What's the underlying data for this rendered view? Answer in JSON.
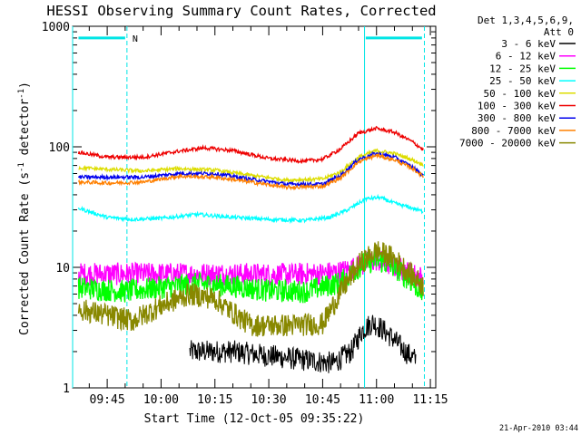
{
  "chart_data": {
    "type": "line",
    "title": "HESSI Observing Summary Count Rates, Corrected",
    "xlabel": "Start Time (12-Oct-05 09:35:22)",
    "ylabel": "Corrected Count Rate (s⁻¹ detector⁻¹)",
    "ylabel_parts": {
      "prefix": "Corrected Count Rate (s",
      "sup1": "-1",
      "middle": " detector",
      "sup2": "-1",
      "suffix": ")"
    },
    "y_scale": "log",
    "ylim": [
      1,
      1000
    ],
    "xlim": [
      "09:35:22",
      "11:16:30"
    ],
    "x_tick_labels": [
      "09:45",
      "10:00",
      "10:15",
      "10:30",
      "10:45",
      "11:00",
      "11:15"
    ],
    "y_tick_labels": [
      "1",
      "10",
      "100",
      "1000"
    ],
    "legend_header": [
      "Det 1,3,4,5,6,9,",
      "Att 0"
    ],
    "legend_position": "right",
    "timestamp": "21-Apr-2010 03:44",
    "annotation": "N",
    "markers": {
      "color": "#00e5e5",
      "solid_times": [
        "09:35:22",
        "10:56:40"
      ],
      "dashed_times": [
        "09:50:30",
        "11:13:20"
      ],
      "bars": [
        {
          "from": "09:37:00",
          "to": "09:50:00",
          "value": 800
        },
        {
          "from": "10:57:00",
          "to": "11:12:40",
          "value": 800
        }
      ]
    },
    "series": [
      {
        "name": "3 - 6 keV",
        "color": "#000000",
        "x": [
          "10:08",
          "10:12",
          "10:16",
          "10:20",
          "10:48",
          "10:53",
          "10:56",
          "10:59",
          "11:02",
          "11:05",
          "11:08",
          "11:11"
        ],
        "y": [
          2,
          2,
          2,
          2,
          1.6,
          2,
          3,
          3.5,
          3,
          2.5,
          2,
          1.7
        ]
      },
      {
        "name": "6 - 12 keV",
        "color": "#ff00ff",
        "x": [
          "09:37",
          "09:50",
          "10:05",
          "10:20",
          "10:35",
          "10:45",
          "10:50",
          "10:55",
          "11:00",
          "11:05",
          "11:10",
          "11:13"
        ],
        "y": [
          8.8,
          8.8,
          8.8,
          8.8,
          8.7,
          8.9,
          9.2,
          10.2,
          11.5,
          10.2,
          8.8,
          8.2
        ]
      },
      {
        "name": "12 - 25 keV",
        "color": "#00ff00",
        "x": [
          "09:37",
          "09:50",
          "10:00",
          "10:10",
          "10:20",
          "10:30",
          "10:40",
          "10:50",
          "10:56",
          "11:00",
          "11:05",
          "11:10",
          "11:13"
        ],
        "y": [
          6.8,
          6.3,
          6.8,
          7.3,
          7.0,
          6.4,
          6.3,
          7.5,
          10.5,
          11.5,
          10.0,
          7.5,
          6.0
        ]
      },
      {
        "name": "25 - 50 keV",
        "color": "#00ffff",
        "x": [
          "09:37",
          "09:45",
          "09:52",
          "10:00",
          "10:10",
          "10:20",
          "10:30",
          "10:40",
          "10:47",
          "10:52",
          "10:57",
          "11:01",
          "11:05",
          "11:10",
          "11:13"
        ],
        "y": [
          31,
          26,
          25,
          25.5,
          27.5,
          26,
          25,
          24.5,
          26,
          30,
          37,
          38,
          34,
          31,
          29
        ]
      },
      {
        "name": "50 - 100 keV",
        "color": "#dddd00",
        "x": [
          "09:37",
          "09:45",
          "09:55",
          "10:05",
          "10:15",
          "10:25",
          "10:35",
          "10:45",
          "10:50",
          "10:55",
          "11:00",
          "11:05",
          "11:10",
          "11:13"
        ],
        "y": [
          67,
          65,
          63,
          66,
          64,
          58,
          53,
          54,
          62,
          82,
          93,
          88,
          78,
          71
        ]
      },
      {
        "name": "100 - 300 keV",
        "color": "#ee0000",
        "x": [
          "09:37",
          "09:45",
          "09:55",
          "10:05",
          "10:12",
          "10:20",
          "10:30",
          "10:40",
          "10:45",
          "10:50",
          "10:55",
          "11:00",
          "11:05",
          "11:10",
          "11:13"
        ],
        "y": [
          90,
          82,
          82,
          92,
          98,
          93,
          80,
          76,
          79,
          96,
          130,
          142,
          132,
          110,
          95
        ]
      },
      {
        "name": "300 - 800 keV",
        "color": "#0000ee",
        "x": [
          "09:37",
          "09:45",
          "09:55",
          "10:05",
          "10:15",
          "10:25",
          "10:35",
          "10:45",
          "10:50",
          "10:55",
          "11:00",
          "11:05",
          "11:10",
          "11:13"
        ],
        "y": [
          56,
          56,
          56,
          60,
          60,
          54,
          49,
          49,
          58,
          79,
          88,
          82,
          68,
          58
        ]
      },
      {
        "name": "800 - 7000 keV",
        "color": "#ff8000",
        "x": [
          "09:37",
          "09:45",
          "09:55",
          "10:05",
          "10:15",
          "10:25",
          "10:35",
          "10:45",
          "10:50",
          "10:55",
          "11:00",
          "11:05",
          "11:10",
          "11:13"
        ],
        "y": [
          51,
          50,
          51,
          57,
          56,
          51,
          46,
          47,
          55,
          75,
          85,
          78,
          66,
          57
        ]
      },
      {
        "name": "7000 - 20000 keV",
        "color": "#888800",
        "x": [
          "09:37",
          "09:45",
          "09:52",
          "10:00",
          "10:08",
          "10:15",
          "10:20",
          "10:25",
          "10:35",
          "10:45",
          "10:50",
          "10:55",
          "11:00",
          "11:05",
          "11:10",
          "11:13"
        ],
        "y": [
          4.5,
          4.0,
          3.6,
          4.8,
          6.0,
          5.5,
          4.2,
          3.3,
          3.3,
          3.4,
          6.2,
          10.5,
          13.8,
          11.8,
          8.5,
          7.0
        ]
      }
    ]
  }
}
